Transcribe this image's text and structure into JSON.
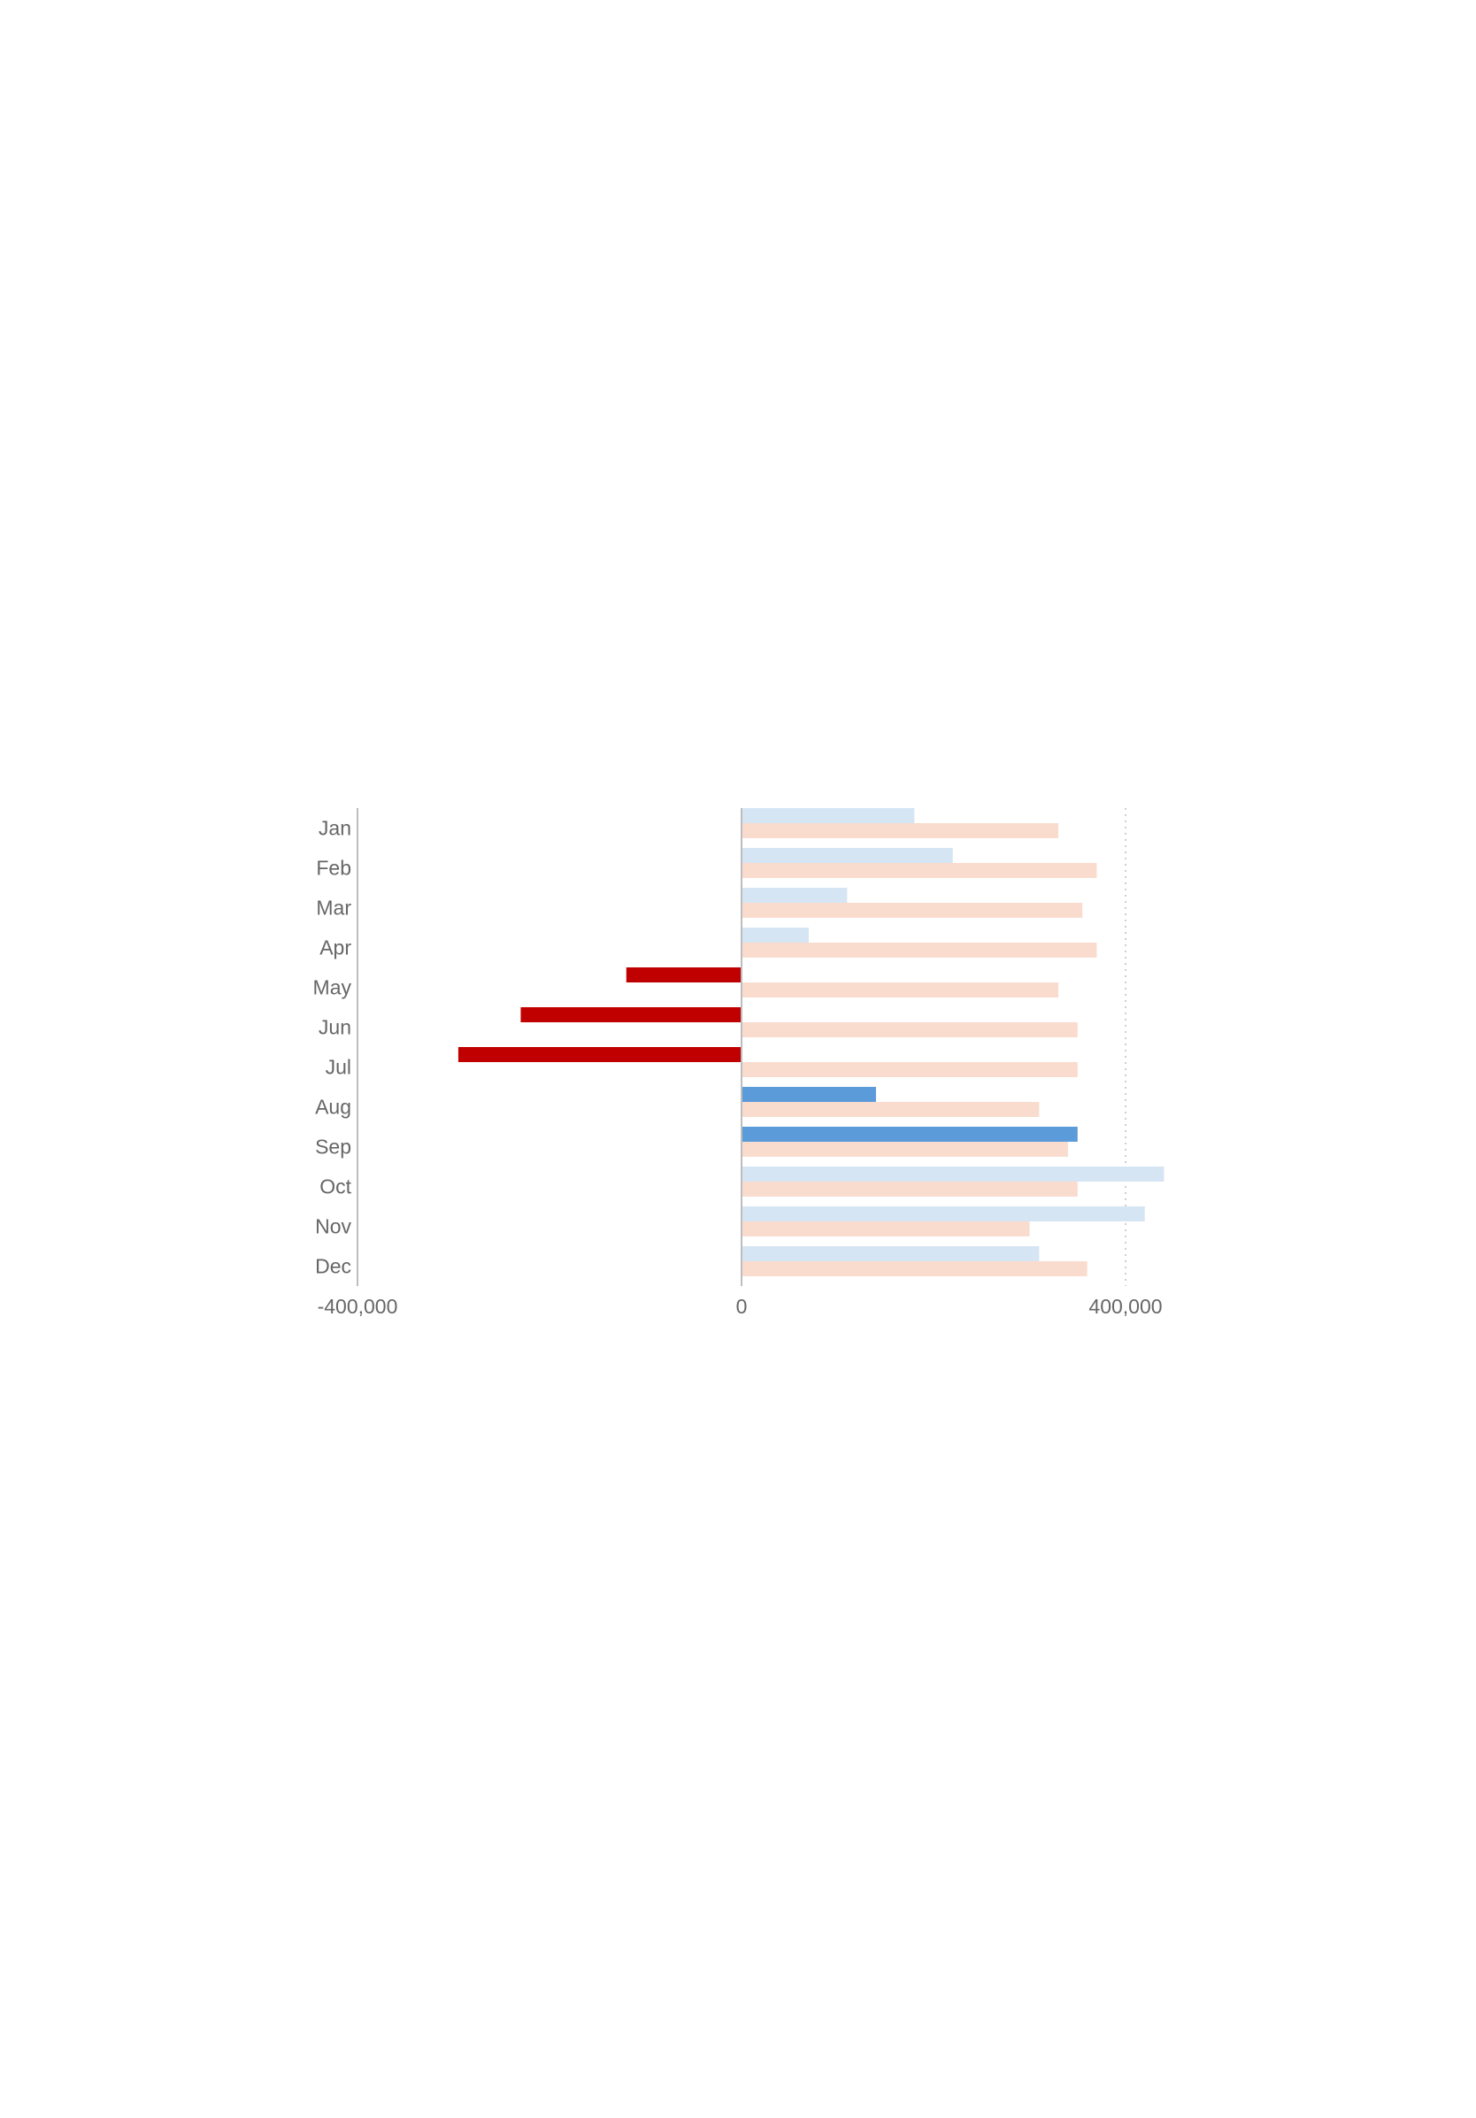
{
  "chart_data": {
    "type": "bar",
    "orientation": "horizontal",
    "title": "",
    "xlabel": "",
    "ylabel": "",
    "xlim": [
      -400000,
      440000
    ],
    "x_ticks": [
      -400000,
      0,
      400000
    ],
    "x_tick_labels": [
      "-400,000",
      "0",
      "400,000"
    ],
    "grid": "dotted vertical line at 400,000",
    "legend": "none",
    "categories": [
      "Jan",
      "Feb",
      "Mar",
      "Apr",
      "May",
      "Jun",
      "Jul",
      "Aug",
      "Sep",
      "Oct",
      "Nov",
      "Dec"
    ],
    "series": [
      {
        "values": [
          180000,
          220000,
          110000,
          70000,
          -120000,
          -230000,
          -295000,
          140000,
          350000,
          440000,
          420000,
          310000
        ],
        "highlight": [
          false,
          false,
          false,
          false,
          true,
          true,
          true,
          true,
          true,
          false,
          false,
          false
        ]
      },
      {
        "values": [
          330000,
          370000,
          355000,
          370000,
          330000,
          350000,
          350000,
          310000,
          340000,
          350000,
          300000,
          360000
        ]
      }
    ],
    "colors": {
      "positive_highlight": "#5b9bd9",
      "positive_light": "#d6e5f4",
      "negative_highlight": "#c00000",
      "negative_light": "#f4c6c0",
      "comparison": "#fadccf",
      "axis": "#bdbdbd",
      "gridline": "#cfcfcf",
      "label_text": "#666666"
    }
  }
}
